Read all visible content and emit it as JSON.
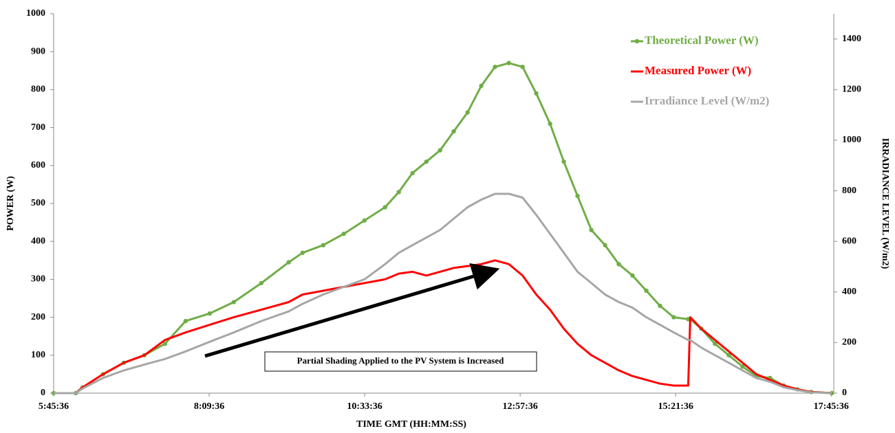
{
  "chart_data": {
    "type": "line",
    "annotation": "Partial Shading Applied to the PV System is Increased",
    "x_label": "TIME GMT (HH:MM:SS)",
    "y_label": "POWER (W)",
    "y2_label": "IRRADIANCE LEVEL (W/m2)",
    "x": [
      345.6,
      366.0,
      372.3,
      391.4,
      410.5,
      429.6,
      448.7,
      467.8,
      490.1,
      512.4,
      537.9,
      563.3,
      576.1,
      595.2,
      614.3,
      633.4,
      652.5,
      665.2,
      677.9,
      690.7,
      703.4,
      716.1,
      728.9,
      741.6,
      754.3,
      767.1,
      779.8,
      792.5,
      805.3,
      818.0,
      830.7,
      843.5,
      856.2,
      868.9,
      881.6,
      894.4,
      907.1,
      919.8,
      933.2,
      935.1,
      945.3,
      958.0,
      970.8,
      983.5,
      996.2,
      1009.0,
      1021.7,
      1034.4,
      1047.2,
      1066.2
    ],
    "xlim": [
      345.6,
      1068
    ],
    "xticks": [
      {
        "value": 345.6,
        "label": "5:45:36"
      },
      {
        "value": 489.6,
        "label": "8:09:36"
      },
      {
        "value": 633.6,
        "label": "10:33:36"
      },
      {
        "value": 777.6,
        "label": "12:57:36"
      },
      {
        "value": 921.6,
        "label": "15:21:36"
      },
      {
        "value": 1065.6,
        "label": "17:45:36"
      }
    ],
    "ylim": [
      0,
      1000
    ],
    "yticks": [
      0,
      100,
      200,
      300,
      400,
      500,
      600,
      700,
      800,
      900,
      1000
    ],
    "y2lim": [
      0,
      1500
    ],
    "y2ticks": [
      0,
      200,
      400,
      600,
      800,
      1000,
      1200,
      1400
    ],
    "legend": "upper right",
    "series": [
      {
        "name": "Theoretical Power (W)",
        "color": "#70ad47",
        "marker": true,
        "values": [
          0,
          0,
          15,
          50,
          80,
          100,
          130,
          190,
          210,
          240,
          290,
          345,
          370,
          390,
          420,
          455,
          490,
          530,
          580,
          610,
          640,
          690,
          740,
          810,
          860,
          870,
          860,
          790,
          710,
          610,
          520,
          430,
          390,
          340,
          310,
          270,
          230,
          200,
          195,
          195,
          170,
          130,
          100,
          70,
          45,
          40,
          20,
          10,
          3,
          0
        ]
      },
      {
        "name": "Measured Power (W)",
        "color": "#ff0000",
        "marker": false,
        "values": [
          0,
          0,
          15,
          50,
          80,
          100,
          140,
          160,
          180,
          200,
          220,
          240,
          260,
          270,
          280,
          290,
          300,
          315,
          320,
          310,
          320,
          330,
          335,
          340,
          350,
          340,
          310,
          260,
          220,
          170,
          130,
          100,
          80,
          60,
          45,
          35,
          25,
          20,
          20,
          200,
          170,
          140,
          110,
          80,
          50,
          35,
          20,
          10,
          3,
          0
        ]
      },
      {
        "name": "Irradiance Level (W/m2)",
        "color": "#a6a6a6",
        "marker": false,
        "axis": "y2",
        "values": [
          0,
          0,
          18,
          60,
          90,
          113,
          135,
          165,
          203,
          240,
          285,
          323,
          353,
          390,
          420,
          450,
          510,
          555,
          585,
          615,
          645,
          690,
          735,
          765,
          788,
          788,
          773,
          705,
          630,
          555,
          480,
          435,
          390,
          360,
          338,
          300,
          270,
          240,
          210,
          210,
          180,
          150,
          120,
          90,
          60,
          45,
          23,
          12,
          3,
          0
        ]
      }
    ]
  }
}
